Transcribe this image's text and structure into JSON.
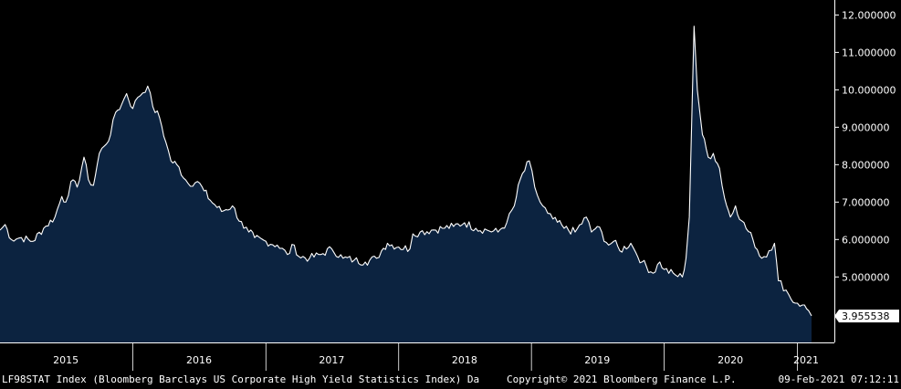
{
  "chart_data": {
    "type": "area",
    "title": "",
    "xlabel": "",
    "ylabel": "",
    "ylim": [
      3.25,
      12.4
    ],
    "xlim": [
      "2015-01-01",
      "2021-02-09"
    ],
    "grid": false,
    "legend": "none",
    "y_axis_side": "right",
    "y_ticks": [
      "5.000000",
      "6.000000",
      "7.000000",
      "8.000000",
      "9.000000",
      "10.000000",
      "11.000000",
      "12.000000"
    ],
    "x_ticks": [
      {
        "year": "2015",
        "mid": "2015-07-01"
      },
      {
        "year": "2016",
        "mid": "2016-07-01"
      },
      {
        "year": "2017",
        "mid": "2017-07-01"
      },
      {
        "year": "2018",
        "mid": "2018-07-01"
      },
      {
        "year": "2019",
        "mid": "2019-07-01"
      },
      {
        "year": "2020",
        "mid": "2020-07-01"
      },
      {
        "year": "2021",
        "mid": "2021-01-25"
      }
    ],
    "year_boundaries": [
      "2016-01-01",
      "2017-01-01",
      "2018-01-01",
      "2019-01-01",
      "2020-01-01",
      "2021-01-01"
    ],
    "last_value_label": "3.955538",
    "colors": {
      "fill": "#0c2340",
      "line": "#ffffff",
      "background": "#000000",
      "label_box": "#ffffff"
    },
    "series": [
      {
        "x": [
          "2015-01-01",
          "2015-01-15",
          "2015-02-01",
          "2015-03-01",
          "2015-04-01",
          "2015-05-01",
          "2015-06-01",
          "2015-06-20",
          "2015-07-01",
          "2015-07-15",
          "2015-08-01",
          "2015-08-20",
          "2015-09-01",
          "2015-09-15",
          "2015-10-01",
          "2015-10-15",
          "2015-11-01",
          "2015-11-15",
          "2015-12-01",
          "2015-12-15",
          "2016-01-01",
          "2016-01-15",
          "2016-02-11",
          "2016-02-25",
          "2016-03-15",
          "2016-04-01",
          "2016-04-15",
          "2016-05-01",
          "2016-06-01",
          "2016-06-27",
          "2016-07-15",
          "2016-08-01",
          "2016-09-01",
          "2016-10-01",
          "2016-11-01",
          "2016-11-15",
          "2016-12-01",
          "2017-01-01",
          "2017-02-01",
          "2017-03-01",
          "2017-03-20",
          "2017-04-01",
          "2017-05-01",
          "2017-06-01",
          "2017-07-01",
          "2017-08-01",
          "2017-09-01",
          "2017-10-01",
          "2017-11-01",
          "2017-11-15",
          "2017-12-01",
          "2018-01-01",
          "2018-02-01",
          "2018-02-09",
          "2018-03-01",
          "2018-04-01",
          "2018-05-01",
          "2018-06-01",
          "2018-07-01",
          "2018-08-01",
          "2018-09-01",
          "2018-10-01",
          "2018-10-25",
          "2018-11-15",
          "2018-12-01",
          "2018-12-26",
          "2019-01-10",
          "2019-01-25",
          "2019-02-15",
          "2019-03-01",
          "2019-04-01",
          "2019-05-01",
          "2019-06-01",
          "2019-06-15",
          "2019-07-01",
          "2019-08-01",
          "2019-08-15",
          "2019-09-01",
          "2019-10-01",
          "2019-10-15",
          "2019-11-01",
          "2019-12-01",
          "2019-12-20",
          "2020-01-01",
          "2020-02-01",
          "2020-02-20",
          "2020-03-01",
          "2020-03-10",
          "2020-03-23",
          "2020-04-01",
          "2020-04-15",
          "2020-05-01",
          "2020-05-15",
          "2020-06-01",
          "2020-06-15",
          "2020-07-01",
          "2020-07-15",
          "2020-08-01",
          "2020-09-01",
          "2020-09-25",
          "2020-10-15",
          "2020-10-30",
          "2020-11-10",
          "2020-12-01",
          "2020-12-15",
          "2021-01-01",
          "2021-01-15",
          "2021-02-01",
          "2021-02-09"
        ],
        "y": [
          6.25,
          6.4,
          6.0,
          6.05,
          5.95,
          6.3,
          6.6,
          7.15,
          7.0,
          7.55,
          7.4,
          8.2,
          7.6,
          7.45,
          8.3,
          8.5,
          8.8,
          9.4,
          9.6,
          9.9,
          9.5,
          9.8,
          10.1,
          9.55,
          9.25,
          8.6,
          8.1,
          8.0,
          7.5,
          7.55,
          7.3,
          7.05,
          6.75,
          6.9,
          6.3,
          6.2,
          6.05,
          5.95,
          5.85,
          5.6,
          5.85,
          5.55,
          5.5,
          5.6,
          5.75,
          5.5,
          5.45,
          5.4,
          5.5,
          5.7,
          5.9,
          5.8,
          5.75,
          6.15,
          6.2,
          6.25,
          6.3,
          6.35,
          6.45,
          6.3,
          6.25,
          6.2,
          6.45,
          6.9,
          7.6,
          8.1,
          7.4,
          7.0,
          6.7,
          6.55,
          6.3,
          6.2,
          6.6,
          6.2,
          6.35,
          5.85,
          5.95,
          5.7,
          5.9,
          5.65,
          5.4,
          5.1,
          5.4,
          5.2,
          5.05,
          5.0,
          5.5,
          6.6,
          11.7,
          10.0,
          8.8,
          8.2,
          8.3,
          7.9,
          7.1,
          6.6,
          6.9,
          6.5,
          6.0,
          5.5,
          5.7,
          5.9,
          4.9,
          4.65,
          4.4,
          4.3,
          4.25,
          4.1,
          3.96
        ]
      }
    ]
  },
  "footer": {
    "left": "LF98STAT Index (Bloomberg Barclays US Corporate High Yield Statistics Index)  Da",
    "center": "Copyright© 2021 Bloomberg Finance L.P.",
    "right": "09-Feb-2021 07:12:11"
  }
}
